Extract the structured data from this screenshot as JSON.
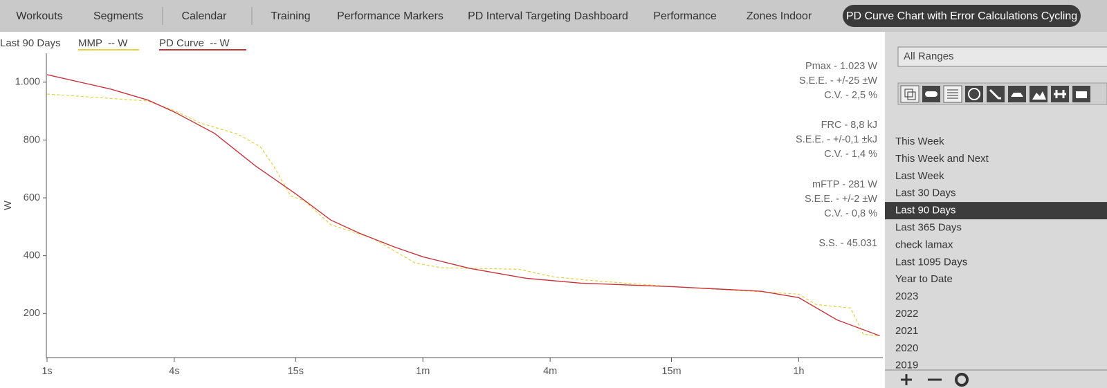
{
  "nav": {
    "tabs": [
      "Workouts",
      "Segments",
      "Calendar",
      "Training",
      "Performance Markers",
      "PD Interval Targeting Dashboard",
      "Performance",
      "Zones Indoor",
      "PD Curve Chart with Error Calculations Cycling"
    ],
    "active": 8
  },
  "chart_data": {
    "type": "line",
    "legend_title": "Last 90 Days",
    "ylabel": "W",
    "xscale": "log",
    "xlim": [
      1,
      9000
    ],
    "ylim": [
      50,
      1100
    ],
    "xticks": [
      {
        "value": 1,
        "label": "1s"
      },
      {
        "value": 4,
        "label": "4s"
      },
      {
        "value": 15,
        "label": "15s"
      },
      {
        "value": 60,
        "label": "1m"
      },
      {
        "value": 240,
        "label": "4m"
      },
      {
        "value": 900,
        "label": "15m"
      },
      {
        "value": 3600,
        "label": "1h"
      }
    ],
    "yticks": [
      200,
      400,
      600,
      800,
      {
        "value": 1000,
        "label": "1.000"
      }
    ],
    "series": [
      {
        "name": "MMP  -- W",
        "color": "#e6cf3c",
        "dashed": true,
        "x": [
          1,
          3,
          4,
          5.3,
          8,
          10.2,
          11.8,
          14.2,
          16.5,
          22,
          35,
          55,
          74,
          171,
          248,
          362,
          900,
          2380,
          3600,
          4350,
          6340,
          7270,
          8700
        ],
        "values": [
          959,
          935,
          902,
          859,
          820,
          777,
          710,
          607,
          590,
          507,
          459,
          375,
          358,
          353,
          327,
          315,
          293,
          275,
          267,
          231,
          219,
          128,
          123
        ]
      },
      {
        "name": "PD Curve  -- W",
        "color": "#c8323c",
        "dashed": false,
        "x": [
          1,
          2,
          3,
          4,
          6.2,
          9.7,
          15,
          22,
          30,
          44,
          60,
          100,
          184,
          336,
          900,
          2380,
          3600,
          5460,
          8700
        ],
        "values": [
          1026,
          976,
          938,
          897,
          823,
          710,
          614,
          523,
          478,
          430,
          396,
          356,
          322,
          305,
          293,
          277,
          255,
          178,
          123
        ]
      }
    ],
    "annotations": [
      "Pmax - 1.023 W",
      "S.E.E. - +/-25 ±W",
      "C.V. - 2,5 %",
      "FRC - 8,8 kJ",
      "S.E.E. - +/-0,1 ±kJ",
      "C.V. - 1,4 %",
      "mFTP - 281 W",
      "S.E.E. - +/-2 ±W",
      "C.V. - 0,8 %",
      "S.S. - 45.031"
    ]
  },
  "sidebar": {
    "dropdown": "All Ranges",
    "ranges": [
      "This Week",
      "This Week and Next",
      "Last Week",
      "Last 30 Days",
      "Last 90 Days",
      "Last 365 Days",
      "check lamax",
      "Last 1095 Days",
      "Year to Date",
      "2023",
      "2022",
      "2021",
      "2020",
      "2019"
    ],
    "selected": 4
  }
}
